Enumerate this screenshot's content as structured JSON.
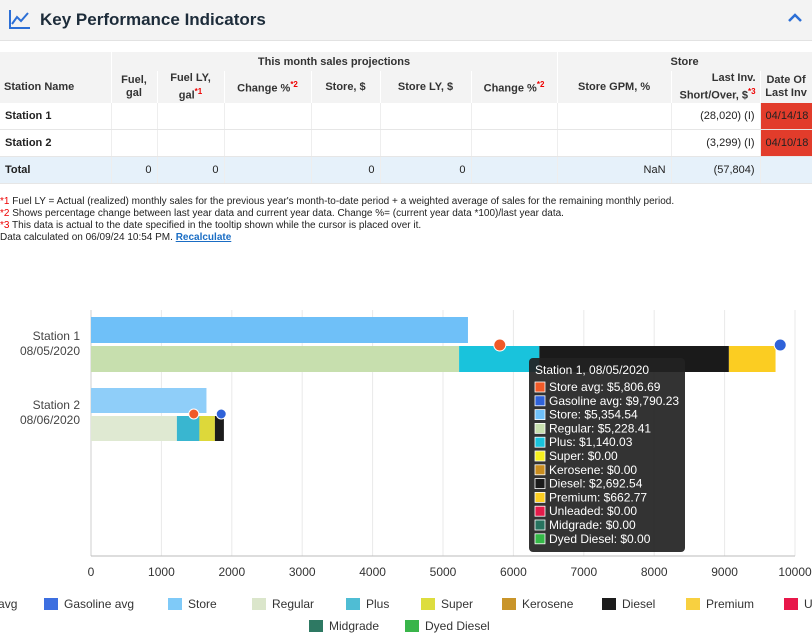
{
  "header": {
    "title": "Key Performance Indicators"
  },
  "table": {
    "group_headers": [
      "This month sales projections",
      "Store"
    ],
    "columns": [
      "Station Name",
      "Fuel,\ngal",
      "Fuel LY,\ngal",
      "Change %",
      "Store, $",
      "Store LY, $",
      "Change %",
      "Store GPM, %",
      "Last Inv.\nShort/Over, $",
      "Date Of\nLast Inv"
    ],
    "markers": {
      "fuel_ly": "*1",
      "change_pct": "*2",
      "short_over": "*3"
    },
    "rows": [
      {
        "name": "Station 1",
        "short_over": "(28,020) (I)",
        "date": "04/14/18"
      },
      {
        "name": "Station 2",
        "short_over": "(3,299) (I)",
        "date": "04/10/18"
      }
    ],
    "total": {
      "name": "Total",
      "fuel": "0",
      "fuel_ly": "0",
      "store": "0",
      "store_ly": "0",
      "gpm": "NaN",
      "short_over": "(57,804)"
    }
  },
  "notes": {
    "n1_mark": "*1",
    "n1": " Fuel LY = Actual (realized) monthly sales for the previous year's month-to-date period + a weighted average of sales for the remaining monthly period.",
    "n2_mark": "*2",
    "n2": " Shows percentage change between last year data and current year data. Change %= (current year data *100)/last year data.",
    "n3_mark": "*3",
    "n3": " This data is actual to the date specified in the tooltip shown while the cursor is placed over it.",
    "calc": "Data calculated on 06/09/24 10:54 PM.",
    "recalc": "Recalculate"
  },
  "chart_data": {
    "type": "bar",
    "orientation": "horizontal",
    "categories": [
      [
        "Station 1",
        "08/05/2020"
      ],
      [
        "Station 2",
        "08/06/2020"
      ]
    ],
    "xlim": [
      0,
      10000
    ],
    "xticks": [
      0,
      1000,
      2000,
      3000,
      4000,
      5000,
      6000,
      7000,
      8000,
      9000,
      10000
    ],
    "store_series": {
      "name": "Store",
      "values": [
        5354.54,
        1640
      ]
    },
    "fuel_series": [
      {
        "name": "Regular",
        "values": [
          5228.41,
          1220
        ]
      },
      {
        "name": "Plus",
        "values": [
          1140.03,
          320
        ]
      },
      {
        "name": "Super",
        "values": [
          0,
          0
        ]
      },
      {
        "name": "Kerosene",
        "values": [
          0,
          0
        ]
      },
      {
        "name": "Diesel",
        "values": [
          2692.54,
          0
        ]
      },
      {
        "name": "Premium",
        "values": [
          662.77,
          220
        ]
      },
      {
        "name": "Unleaded",
        "values": [
          0,
          0
        ]
      },
      {
        "name": "Midgrade",
        "values": [
          0,
          0
        ]
      },
      {
        "name": "Dyed Diesel",
        "values": [
          0,
          0
        ]
      }
    ],
    "markers": [
      {
        "name": "Store avg",
        "values": [
          5806.69,
          1460
        ]
      },
      {
        "name": "Gasoline avg",
        "values": [
          9790.23,
          1850
        ]
      }
    ],
    "legend": [
      "Store avg",
      "Gasoline avg",
      "Store",
      "Regular",
      "Plus",
      "Super",
      "Kerosene",
      "Diesel",
      "Premium",
      "Unleaded",
      "Midgrade",
      "Dyed Diesel"
    ],
    "legend_position": "bottom",
    "grid": "vertical",
    "tooltip": {
      "title": "Station 1, 08/05/2020",
      "items": [
        {
          "label": "Store avg: $5,806.69"
        },
        {
          "label": "Gasoline avg: $9,790.23"
        },
        {
          "label": "Store: $5,354.54"
        },
        {
          "label": "Regular: $5,228.41"
        },
        {
          "label": "Plus: $1,140.03"
        },
        {
          "label": "Super: $0.00"
        },
        {
          "label": "Kerosene: $0.00"
        },
        {
          "label": "Diesel: $2,692.54"
        },
        {
          "label": "Premium: $662.77"
        },
        {
          "label": "Unleaded: $0.00"
        },
        {
          "label": "Midgrade: $0.00"
        },
        {
          "label": "Dyed Diesel: $0.00"
        }
      ]
    },
    "colors": {
      "Store avg": "#f05a28",
      "Gasoline avg": "#2f62d9",
      "Store": "#6fc0f8",
      "Regular": "#c7dfae",
      "Plus": "#19c3dc",
      "Super": "#f5ef1f",
      "Kerosene": "#c98d1f",
      "Diesel": "#1a1a1a",
      "Premium": "#fbcd22",
      "Unleaded": "#e41b4a",
      "Midgrade": "#27735f",
      "Dyed Diesel": "#34b847"
    },
    "legend_colors": {
      "Store avg": "#f05a28",
      "Gasoline avg": "#3d6fe0",
      "Store": "#7fcaf8",
      "Regular": "#dbe6cb",
      "Plus": "#4fbdd4",
      "Super": "#dddd3e",
      "Kerosene": "#c9952a",
      "Diesel": "#1c1c1c",
      "Premium": "#f8d040",
      "Unleaded": "#e8174a",
      "Midgrade": "#2e7963",
      "Dyed Diesel": "#39b54a"
    }
  }
}
